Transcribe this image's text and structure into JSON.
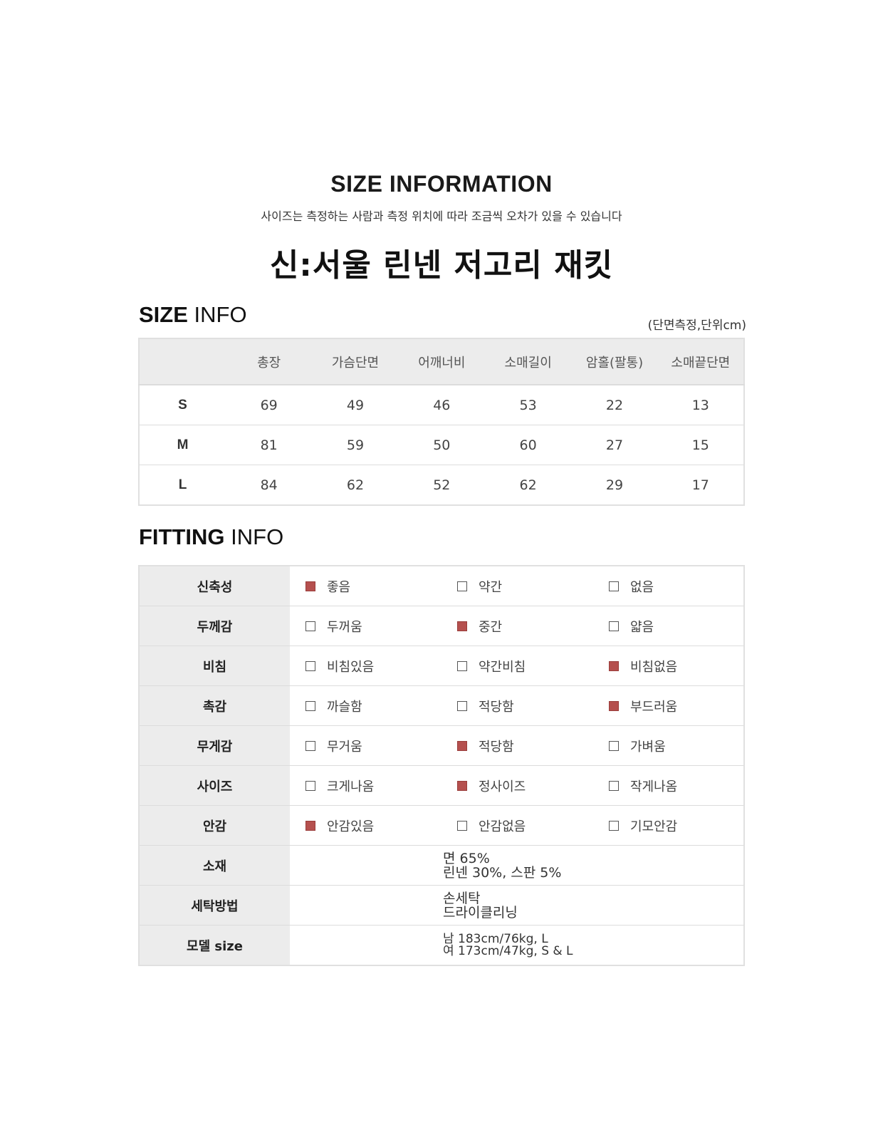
{
  "header": {
    "title": "SIZE INFORMATION",
    "subtitle": "사이즈는 측정하는 사람과 측정 위치에 따라 조금씩 오차가 있을 수 있습니다",
    "product_name": "신:서울 린넨 저고리 재킷"
  },
  "size_info": {
    "heading_strong": "SIZE",
    "heading_light": " INFO",
    "unit_note": "(단면측정,단위cm)",
    "columns": [
      "",
      "총장",
      "가슴단면",
      "어깨너비",
      "소매길이",
      "암홀(팔통)",
      "소매끝단면"
    ],
    "rows": [
      {
        "size": "S",
        "values": [
          "69",
          "49",
          "46",
          "53",
          "22",
          "13"
        ]
      },
      {
        "size": "M",
        "values": [
          "81",
          "59",
          "50",
          "60",
          "27",
          "15"
        ]
      },
      {
        "size": "L",
        "values": [
          "84",
          "62",
          "52",
          "62",
          "29",
          "17"
        ]
      }
    ]
  },
  "fitting_info": {
    "heading_strong": "FITTING",
    "heading_light": " INFO",
    "check_color": "#b5504e",
    "rows": [
      {
        "label": "신축성",
        "options": [
          {
            "text": "좋음",
            "checked": true
          },
          {
            "text": "약간",
            "checked": false
          },
          {
            "text": "없음",
            "checked": false
          }
        ]
      },
      {
        "label": "두께감",
        "options": [
          {
            "text": "두꺼움",
            "checked": false
          },
          {
            "text": "중간",
            "checked": true
          },
          {
            "text": "얇음",
            "checked": false
          }
        ]
      },
      {
        "label": "비침",
        "options": [
          {
            "text": "비침있음",
            "checked": false
          },
          {
            "text": "약간비침",
            "checked": false
          },
          {
            "text": "비침없음",
            "checked": true
          }
        ]
      },
      {
        "label": "촉감",
        "options": [
          {
            "text": "까슬함",
            "checked": false
          },
          {
            "text": "적당함",
            "checked": false
          },
          {
            "text": "부드러움",
            "checked": true
          }
        ]
      },
      {
        "label": "무게감",
        "options": [
          {
            "text": "무거움",
            "checked": false
          },
          {
            "text": "적당함",
            "checked": true
          },
          {
            "text": "가벼움",
            "checked": false
          }
        ]
      },
      {
        "label": "사이즈",
        "options": [
          {
            "text": "크게나옴",
            "checked": false
          },
          {
            "text": "정사이즈",
            "checked": true
          },
          {
            "text": "작게나옴",
            "checked": false
          }
        ]
      },
      {
        "label": "안감",
        "options": [
          {
            "text": "안감있음",
            "checked": true
          },
          {
            "text": "안감없음",
            "checked": false
          },
          {
            "text": "기모안감",
            "checked": false
          }
        ]
      }
    ],
    "text_rows": [
      {
        "label": "소재",
        "lines": [
          "면 65%",
          "린넨 30%, 스판 5%"
        ]
      },
      {
        "label": "세탁방법",
        "lines": [
          "손세탁",
          "드라이클리닝"
        ]
      },
      {
        "label": "모델 size",
        "lines": [
          "남 183cm/76kg, L",
          "여 173cm/47kg, S & L"
        ]
      }
    ]
  }
}
